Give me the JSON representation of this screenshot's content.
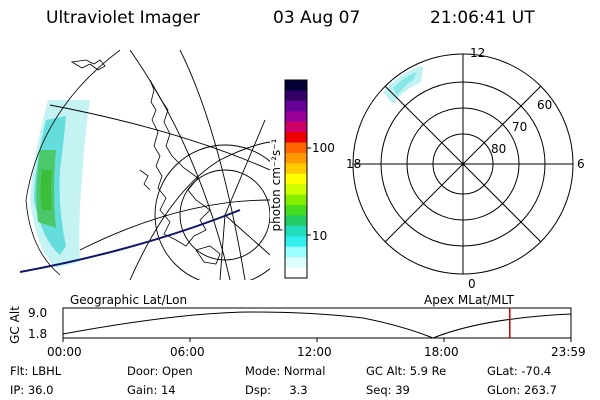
{
  "header": {
    "title": "Ultraviolet Imager",
    "date": "03 Aug 07",
    "time": "21:06:41 UT"
  },
  "colorbar": {
    "label": "photon cm⁻²s⁻¹",
    "ticks": [
      "100",
      "10"
    ],
    "scale": "log",
    "colors": [
      "#000033",
      "#330066",
      "#660099",
      "#990099",
      "#cc0066",
      "#ee0000",
      "#ff6600",
      "#ff9900",
      "#ffcc00",
      "#ffff00",
      "#ccff00",
      "#88ee00",
      "#44dd22",
      "#22cc66",
      "#22ddbb",
      "#33eeee",
      "#99ffff",
      "#ddffff",
      "#ffffff"
    ]
  },
  "polar": {
    "mlt_labels": {
      "top": "12",
      "left": "18",
      "right": "6",
      "bottom": "0"
    },
    "lat_labels": [
      "60",
      "70",
      "80"
    ]
  },
  "panel_labels": {
    "left": "Geographic Lat/Lon",
    "right": "Apex MLat/MLT"
  },
  "altitude_plot": {
    "ylabel": "GC Alt",
    "ymax": "9.0",
    "ymin": "1.8",
    "xticks": [
      "00:00",
      "06:00",
      "12:00",
      "18:00",
      "23:59"
    ],
    "current_time_fraction": 0.8795,
    "marker_color": "#cc0000"
  },
  "status": {
    "row1": [
      {
        "key": "Flt:",
        "value": "LBHL"
      },
      {
        "key": "Door:",
        "value": "Open"
      },
      {
        "key": "Mode:",
        "value": "Normal"
      },
      {
        "key": "GC Alt:",
        "value": "5.9 Re"
      },
      {
        "key": "GLat:",
        "value": "-70.4"
      }
    ],
    "row2": [
      {
        "key": "IP:",
        "value": "36.0"
      },
      {
        "key": "Gain:",
        "value": "14"
      },
      {
        "key": "Dsp:",
        "value": "3.3"
      },
      {
        "key": "Seq:",
        "value": "39"
      },
      {
        "key": "GLon:",
        "value": "263.7"
      }
    ]
  }
}
